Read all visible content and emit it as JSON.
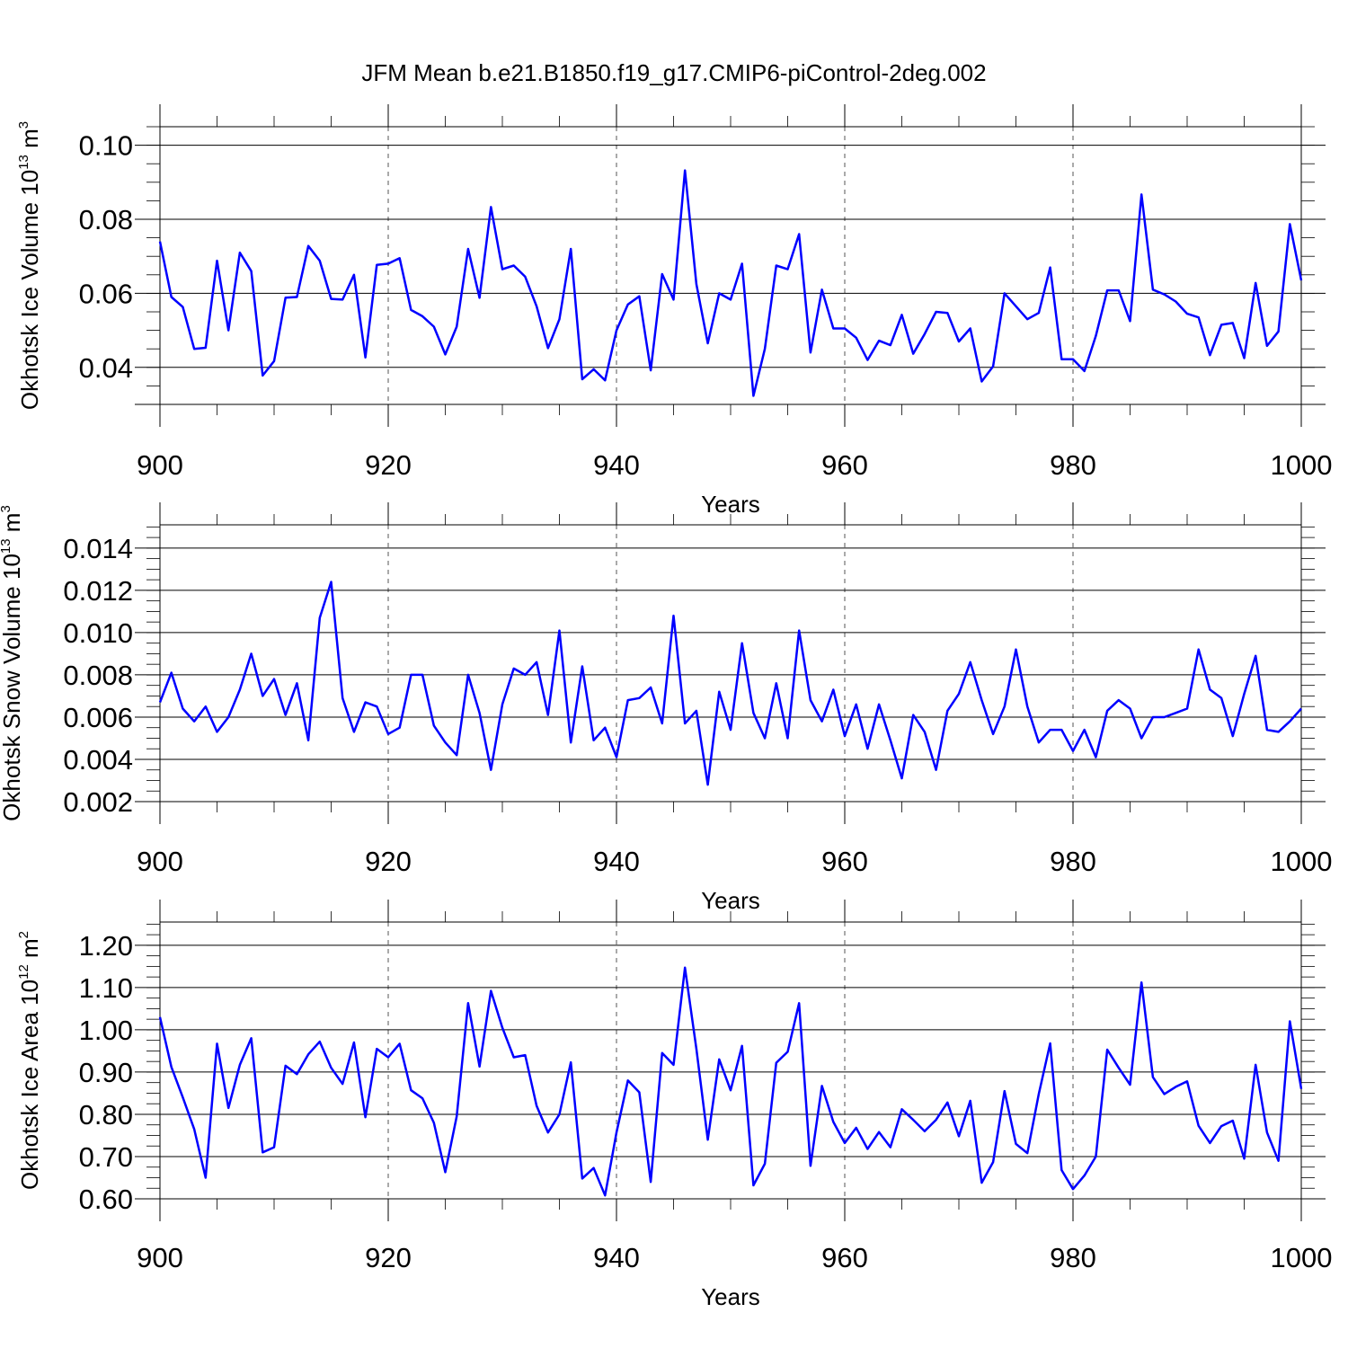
{
  "title": "JFM Mean b.e21.B1850.f19_g17.CMIP6-piControl-2deg.002",
  "colors": {
    "line": "#0000ff",
    "frame": "#000000"
  },
  "chart_data": [
    {
      "type": "line",
      "id": "ice-volume",
      "xlabel": "Years",
      "ylabel": "Okhotsk Ice Volume 10",
      "ylabel_exp": "13",
      "ylabel_unit": " m",
      "ylabel_unit_exp": "3",
      "xlim": [
        900,
        1000
      ],
      "ylim": [
        0.03,
        0.105
      ],
      "xticks": [
        900,
        920,
        940,
        960,
        980,
        1000
      ],
      "xtick_labels": [
        "900",
        "920",
        "940",
        "960",
        "980",
        "1000"
      ],
      "yticks": [
        0.04,
        0.06,
        0.08,
        0.1
      ],
      "ytick_labels": [
        "0.04",
        "0.06",
        "0.08",
        "0.10"
      ],
      "yminor_step": 0.005,
      "grid_x": true,
      "x_start": 900,
      "series": [
        {
          "name": "Okhotsk Ice Volume",
          "values": [
            0.074,
            0.059,
            0.0563,
            0.045,
            0.0453,
            0.0688,
            0.05,
            0.071,
            0.066,
            0.0378,
            0.0417,
            0.0588,
            0.059,
            0.0728,
            0.0688,
            0.0585,
            0.0583,
            0.065,
            0.0427,
            0.0677,
            0.068,
            0.0695,
            0.0555,
            0.0538,
            0.051,
            0.0435,
            0.051,
            0.072,
            0.0588,
            0.0833,
            0.0665,
            0.0675,
            0.0645,
            0.0565,
            0.0452,
            0.053,
            0.072,
            0.0368,
            0.0395,
            0.0365,
            0.05,
            0.057,
            0.0592,
            0.0392,
            0.0652,
            0.0583,
            0.0932,
            0.0625,
            0.0465,
            0.06,
            0.0583,
            0.068,
            0.0323,
            0.045,
            0.0675,
            0.0665,
            0.076,
            0.044,
            0.061,
            0.0505,
            0.0505,
            0.048,
            0.042,
            0.0472,
            0.046,
            0.0542,
            0.0437,
            0.049,
            0.055,
            0.0547,
            0.047,
            0.0505,
            0.0362,
            0.0403,
            0.06,
            0.0565,
            0.053,
            0.0547,
            0.067,
            0.0422,
            0.0422,
            0.039,
            0.0485,
            0.0608,
            0.0608,
            0.0525,
            0.0867,
            0.061,
            0.0597,
            0.0578,
            0.0545,
            0.0535,
            0.0433,
            0.0515,
            0.052,
            0.0425,
            0.0628,
            0.0458,
            0.0497,
            0.0787,
            0.0635
          ]
        }
      ]
    },
    {
      "type": "line",
      "id": "snow-volume",
      "xlabel": "Years",
      "ylabel": "Okhotsk Snow Volume 10",
      "ylabel_exp": "13",
      "ylabel_unit": " m",
      "ylabel_unit_exp": "3",
      "xlim": [
        900,
        1000
      ],
      "ylim": [
        0.002,
        0.0151
      ],
      "xticks": [
        900,
        920,
        940,
        960,
        980,
        1000
      ],
      "xtick_labels": [
        "900",
        "920",
        "940",
        "960",
        "980",
        "1000"
      ],
      "yticks": [
        0.002,
        0.004,
        0.006,
        0.008,
        0.01,
        0.012,
        0.014
      ],
      "ytick_labels": [
        "0.002",
        "0.004",
        "0.006",
        "0.008",
        "0.010",
        "0.012",
        "0.014"
      ],
      "yminor_step": 0.0005,
      "grid_x": true,
      "x_start": 900,
      "series": [
        {
          "name": "Okhotsk Snow Volume",
          "values": [
            0.0067,
            0.0081,
            0.0064,
            0.0058,
            0.0065,
            0.0053,
            0.006,
            0.0073,
            0.009,
            0.007,
            0.0078,
            0.0061,
            0.0076,
            0.0049,
            0.0107,
            0.0124,
            0.0069,
            0.0053,
            0.0067,
            0.0065,
            0.0052,
            0.0055,
            0.008,
            0.008,
            0.0056,
            0.0048,
            0.0042,
            0.008,
            0.0062,
            0.0035,
            0.0066,
            0.0083,
            0.008,
            0.0086,
            0.0061,
            0.0101,
            0.0048,
            0.0084,
            0.0049,
            0.0055,
            0.0041,
            0.0068,
            0.0069,
            0.0074,
            0.0057,
            0.0108,
            0.0057,
            0.0063,
            0.0028,
            0.0072,
            0.0054,
            0.0095,
            0.0062,
            0.005,
            0.0076,
            0.005,
            0.0101,
            0.0068,
            0.0058,
            0.0073,
            0.0051,
            0.0066,
            0.0045,
            0.0066,
            0.0049,
            0.0031,
            0.0061,
            0.0053,
            0.0035,
            0.0063,
            0.0071,
            0.0086,
            0.0068,
            0.0052,
            0.0065,
            0.0092,
            0.0065,
            0.0048,
            0.0054,
            0.0054,
            0.0044,
            0.0054,
            0.0041,
            0.0063,
            0.0068,
            0.0064,
            0.005,
            0.006,
            0.006,
            0.0062,
            0.0064,
            0.0092,
            0.0073,
            0.0069,
            0.0051,
            0.0071,
            0.0089,
            0.0054,
            0.0053,
            0.0058,
            0.0064
          ]
        }
      ]
    },
    {
      "type": "line",
      "id": "ice-area",
      "xlabel": "Years",
      "ylabel": "Okhotsk Ice Area 10",
      "ylabel_exp": "12",
      "ylabel_unit": " m",
      "ylabel_unit_exp": "2",
      "xlim": [
        900,
        1000
      ],
      "ylim": [
        0.6,
        1.255
      ],
      "xticks": [
        900,
        920,
        940,
        960,
        980,
        1000
      ],
      "xtick_labels": [
        "900",
        "920",
        "940",
        "960",
        "980",
        "1000"
      ],
      "yticks": [
        0.6,
        0.7,
        0.8,
        0.9,
        1.0,
        1.1,
        1.2
      ],
      "ytick_labels": [
        "0.60",
        "0.70",
        "0.80",
        "0.90",
        "1.00",
        "1.10",
        "1.20"
      ],
      "yminor_step": 0.025,
      "grid_x": true,
      "x_start": 900,
      "series": [
        {
          "name": "Okhotsk Ice Area",
          "values": [
            1.03,
            0.912,
            0.84,
            0.765,
            0.65,
            0.967,
            0.815,
            0.917,
            0.98,
            0.71,
            0.722,
            0.915,
            0.895,
            0.942,
            0.972,
            0.91,
            0.872,
            0.97,
            0.793,
            0.955,
            0.935,
            0.967,
            0.857,
            0.838,
            0.78,
            0.663,
            0.795,
            1.063,
            0.913,
            1.092,
            1.005,
            0.935,
            0.94,
            0.82,
            0.757,
            0.8,
            0.923,
            0.648,
            0.673,
            0.608,
            0.757,
            0.88,
            0.852,
            0.64,
            0.945,
            0.917,
            1.147,
            0.955,
            0.74,
            0.93,
            0.857,
            0.962,
            0.632,
            0.683,
            0.922,
            0.948,
            1.063,
            0.678,
            0.867,
            0.782,
            0.732,
            0.768,
            0.718,
            0.758,
            0.722,
            0.812,
            0.787,
            0.76,
            0.787,
            0.828,
            0.748,
            0.832,
            0.638,
            0.687,
            0.855,
            0.73,
            0.708,
            0.848,
            0.968,
            0.668,
            0.623,
            0.655,
            0.7,
            0.953,
            0.91,
            0.87,
            1.112,
            0.888,
            0.848,
            0.865,
            0.878,
            0.773,
            0.732,
            0.772,
            0.785,
            0.695,
            0.917,
            0.757,
            0.69,
            1.02,
            0.86
          ]
        }
      ]
    }
  ]
}
